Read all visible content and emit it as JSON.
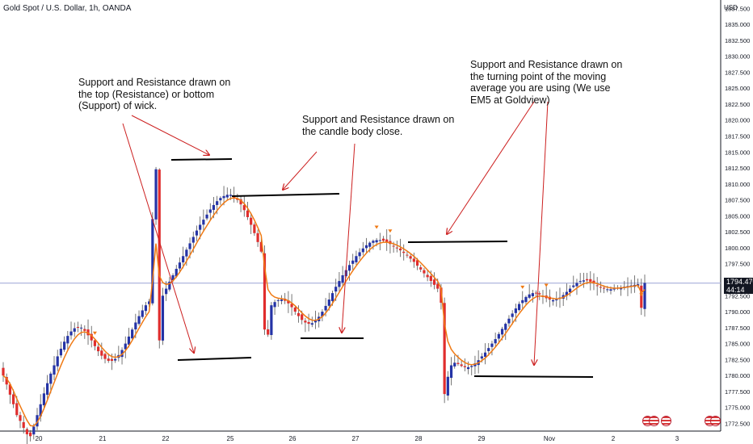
{
  "header": {
    "title": "Gold Spot / U.S. Dollar, 1h, OANDA",
    "currency": "USD"
  },
  "price_label": {
    "price": "1794.470",
    "countdown": "44:14"
  },
  "annotations": {
    "wick": "Support and Resistance drawn on\nthe top (Resistance) or bottom\n(Support) of wick.",
    "body": "Support and Resistance drawn on\nthe candle body close.",
    "ma": "Support and Resistance drawn on\nthe turning point of the moving\naverage you are using (We use\nEM5 at Goldview)"
  },
  "colors": {
    "up": "#2433a6",
    "down": "#e02d2d",
    "ma": "#f07a14",
    "line": "#000000",
    "arrow": "#cc1f1f",
    "axis": "#131722",
    "current_price_line": "#9aa3d6"
  },
  "chart_data": {
    "type": "candlestick",
    "title": "Gold Spot / U.S. Dollar, 1h, OANDA",
    "x_tick_labels": [
      "20",
      "21",
      "22",
      "25",
      "26",
      "27",
      "28",
      "29",
      "Nov",
      "2",
      "3"
    ],
    "y_ticks": [
      1772.5,
      1775.0,
      1777.5,
      1780.0,
      1782.5,
      1785.0,
      1787.5,
      1790.0,
      1792.5,
      1795.0,
      1797.5,
      1800.0,
      1802.5,
      1805.0,
      1807.5,
      1810.0,
      1812.5,
      1815.0,
      1817.5,
      1820.0,
      1822.5,
      1825.0,
      1827.5,
      1830.0,
      1832.5,
      1835.0,
      1837.5
    ],
    "y_range": [
      1771.3,
      1838.8
    ],
    "current_price": 1794.47,
    "current_price_text": "1794.470",
    "ma_label": "EM5",
    "support_resistance_levels": [
      1814.0,
      1809.0,
      1783.0,
      1786.0,
      1801.2,
      1780.0
    ],
    "candle_count": 190,
    "candles_close": [
      1780.0,
      1778.6,
      1777.0,
      1775.5,
      1773.8,
      1772.9,
      1771.8,
      1770.8,
      1770.5,
      1772.0,
      1773.8,
      1775.5,
      1777.2,
      1778.8,
      1780.3,
      1781.6,
      1783.0,
      1784.2,
      1785.3,
      1786.2,
      1786.9,
      1787.4,
      1787.6,
      1787.5,
      1787.0,
      1786.3,
      1785.5,
      1784.6,
      1783.8,
      1783.1,
      1782.6,
      1782.3,
      1782.3,
      1782.6,
      1783.2,
      1784.0,
      1785.0,
      1786.1,
      1787.2,
      1788.3,
      1789.3,
      1790.2,
      1791.0,
      1791.6,
      1804.5,
      1812.3,
      1785.5,
      1792.5,
      1793.6,
      1794.7,
      1795.7,
      1796.7,
      1797.7,
      1798.7,
      1799.7,
      1800.7,
      1801.7,
      1802.7,
      1803.6,
      1804.4,
      1805.2,
      1806.0,
      1806.7,
      1807.3,
      1807.8,
      1808.1,
      1808.3,
      1808.3,
      1808.0,
      1807.5,
      1806.8,
      1805.9,
      1804.8,
      1803.6,
      1802.3,
      1800.9,
      1799.4,
      1787.2,
      1786.4,
      1791.0,
      1791.5,
      1791.8,
      1791.9,
      1791.7,
      1791.3,
      1790.7,
      1790.0,
      1789.3,
      1788.7,
      1788.3,
      1788.1,
      1788.2,
      1788.6,
      1789.2,
      1790.0,
      1790.9,
      1791.9,
      1792.9,
      1793.9,
      1794.8,
      1795.7,
      1796.5,
      1797.3,
      1798.0,
      1798.7,
      1799.3,
      1799.9,
      1800.4,
      1800.8,
      1801.1,
      1801.2,
      1801.2,
      1801.1,
      1800.9,
      1800.6,
      1800.3,
      1800.0,
      1799.6,
      1799.2,
      1798.8,
      1798.3,
      1797.8,
      1797.2,
      1796.6,
      1796.0,
      1795.4,
      1794.8,
      1794.2,
      1793.6,
      1791.4,
      1777.1,
      1779.8,
      1781.6,
      1782.0,
      1781.8,
      1781.5,
      1781.3,
      1781.3,
      1781.5,
      1781.9,
      1782.4,
      1783.0,
      1783.6,
      1784.3,
      1785.0,
      1785.7,
      1786.5,
      1787.3,
      1788.1,
      1788.9,
      1789.7,
      1790.5,
      1791.2,
      1791.8,
      1792.3,
      1792.7,
      1792.9,
      1792.9,
      1792.7,
      1792.4,
      1792.1,
      1791.9,
      1791.8,
      1791.9,
      1792.2,
      1792.6,
      1793.1,
      1793.6,
      1794.1,
      1794.5,
      1794.8,
      1794.9,
      1794.9,
      1794.7,
      1794.4,
      1794.1,
      1793.8,
      1793.6,
      1793.5,
      1793.5,
      1793.6,
      1793.7,
      1793.8,
      1793.9,
      1794.0,
      1794.1,
      1794.2,
      1794.3,
      1790.6,
      1794.5
    ]
  }
}
